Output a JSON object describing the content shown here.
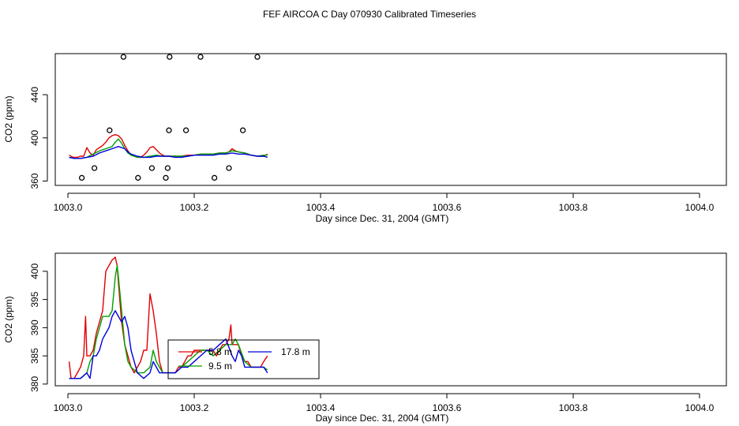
{
  "title": "FEF AIRCOA C  Day 070930  Calibrated Timeseries",
  "colors": {
    "red": "#e00000",
    "green": "#00a000",
    "blue": "#0000e0",
    "axis": "#000000"
  },
  "chart_data": [
    {
      "type": "line",
      "xlabel": "Day since Dec. 31, 2004 (GMT)",
      "ylabel": "CO2 (ppm)",
      "xlim": [
        1003.0,
        1004.0
      ],
      "ylim": [
        356,
        478
      ],
      "xticks": [
        1003.0,
        1003.2,
        1003.4,
        1003.6,
        1003.8,
        1004.0
      ],
      "xtick_labels": [
        "1003.0",
        "1003.2",
        "1003.4",
        "1003.6",
        "1003.8",
        "1004.0"
      ],
      "yticks": [
        360,
        400,
        440
      ],
      "ytick_labels": [
        "360",
        "400",
        "440"
      ],
      "series": [
        {
          "name": "red",
          "color": "#e00000",
          "x": [
            1003.002,
            1003.008,
            1003.015,
            1003.02,
            1003.025,
            1003.03,
            1003.035,
            1003.04,
            1003.045,
            1003.05,
            1003.055,
            1003.06,
            1003.065,
            1003.07,
            1003.075,
            1003.08,
            1003.085,
            1003.09,
            1003.095,
            1003.1,
            1003.105,
            1003.11,
            1003.115,
            1003.12,
            1003.125,
            1003.13,
            1003.135,
            1003.14,
            1003.145,
            1003.15,
            1003.155,
            1003.16,
            1003.17,
            1003.18,
            1003.19,
            1003.2,
            1003.21,
            1003.22,
            1003.23,
            1003.24,
            1003.25,
            1003.255,
            1003.26,
            1003.265,
            1003.27,
            1003.28,
            1003.29,
            1003.3,
            1003.31,
            1003.316
          ],
          "values": [
            384,
            382,
            382,
            383,
            383,
            391,
            386,
            384,
            389,
            391,
            393,
            396,
            400,
            402,
            403,
            402,
            399,
            393,
            388,
            384,
            383,
            382,
            382,
            384,
            387,
            391,
            392,
            389,
            386,
            384,
            383,
            383,
            383,
            383,
            384,
            384,
            385,
            385,
            385,
            386,
            386,
            387,
            390,
            388,
            387,
            386,
            384,
            383,
            383,
            385
          ]
        },
        {
          "name": "green",
          "color": "#00a000",
          "x": [
            1003.002,
            1003.01,
            1003.02,
            1003.03,
            1003.04,
            1003.05,
            1003.06,
            1003.065,
            1003.07,
            1003.075,
            1003.08,
            1003.085,
            1003.09,
            1003.095,
            1003.1,
            1003.11,
            1003.12,
            1003.13,
            1003.14,
            1003.15,
            1003.16,
            1003.17,
            1003.18,
            1003.19,
            1003.2,
            1003.21,
            1003.22,
            1003.23,
            1003.24,
            1003.25,
            1003.26,
            1003.27,
            1003.28,
            1003.29,
            1003.3,
            1003.31,
            1003.316
          ],
          "values": [
            382,
            381,
            381,
            382,
            385,
            388,
            390,
            391,
            392,
            396,
            399,
            395,
            390,
            386,
            384,
            382,
            382,
            383,
            384,
            383,
            383,
            383,
            383,
            383,
            384,
            385,
            385,
            385,
            386,
            386,
            388,
            387,
            386,
            384,
            383,
            384,
            384
          ]
        },
        {
          "name": "blue",
          "color": "#0000e0",
          "x": [
            1003.002,
            1003.01,
            1003.02,
            1003.03,
            1003.04,
            1003.05,
            1003.06,
            1003.07,
            1003.075,
            1003.08,
            1003.085,
            1003.09,
            1003.095,
            1003.1,
            1003.11,
            1003.12,
            1003.13,
            1003.14,
            1003.15,
            1003.16,
            1003.17,
            1003.18,
            1003.19,
            1003.2,
            1003.21,
            1003.22,
            1003.23,
            1003.24,
            1003.25,
            1003.26,
            1003.27,
            1003.28,
            1003.29,
            1003.3,
            1003.31,
            1003.316
          ],
          "values": [
            382,
            381,
            381,
            382,
            383,
            386,
            388,
            390,
            391,
            392,
            391,
            390,
            387,
            385,
            383,
            382,
            382,
            383,
            383,
            383,
            382,
            382,
            383,
            384,
            384,
            384,
            384,
            385,
            385,
            386,
            385,
            385,
            384,
            383,
            383,
            382
          ]
        }
      ],
      "points": {
        "x": [
          1003.022,
          1003.042,
          1003.066,
          1003.088,
          1003.111,
          1003.133,
          1003.155,
          1003.158,
          1003.16,
          1003.161,
          1003.187,
          1003.21,
          1003.232,
          1003.255,
          1003.277,
          1003.3
        ],
        "values": [
          363,
          372,
          407,
          475,
          363,
          372,
          363,
          372,
          407,
          475,
          407,
          475,
          363,
          372,
          407,
          475
        ]
      }
    },
    {
      "type": "line",
      "xlabel": "Day since Dec. 31, 2004 (GMT)",
      "ylabel": "CO2 (ppm)",
      "xlim": [
        1003.0,
        1004.0
      ],
      "ylim": [
        379.7,
        403.2
      ],
      "xticks": [
        1003.0,
        1003.2,
        1003.4,
        1003.6,
        1003.8,
        1004.0
      ],
      "xtick_labels": [
        "1003.0",
        "1003.2",
        "1003.4",
        "1003.6",
        "1003.8",
        "1004.0"
      ],
      "yticks": [
        380,
        385,
        390,
        395,
        400
      ],
      "ytick_labels": [
        "380",
        "385",
        "390",
        "395",
        "400"
      ],
      "legend": {
        "labels": [
          "5.8 m",
          "9.5 m",
          "17.8 m"
        ],
        "colors": [
          "#e00000",
          "#00a000",
          "#0000e0"
        ],
        "position": "center"
      },
      "series": [
        {
          "name": "5.8 m",
          "color": "#e00000",
          "x": [
            1003.002,
            1003.005,
            1003.01,
            1003.015,
            1003.02,
            1003.025,
            1003.028,
            1003.03,
            1003.035,
            1003.04,
            1003.045,
            1003.05,
            1003.055,
            1003.06,
            1003.065,
            1003.07,
            1003.075,
            1003.078,
            1003.08,
            1003.085,
            1003.09,
            1003.095,
            1003.1,
            1003.105,
            1003.11,
            1003.115,
            1003.12,
            1003.125,
            1003.13,
            1003.135,
            1003.14,
            1003.145,
            1003.15,
            1003.155,
            1003.16,
            1003.165,
            1003.17,
            1003.175,
            1003.18,
            1003.185,
            1003.19,
            1003.195,
            1003.2,
            1003.205,
            1003.21,
            1003.215,
            1003.22,
            1003.225,
            1003.23,
            1003.235,
            1003.24,
            1003.245,
            1003.25,
            1003.255,
            1003.258,
            1003.26,
            1003.265,
            1003.27,
            1003.275,
            1003.28,
            1003.285,
            1003.29,
            1003.295,
            1003.3,
            1003.305,
            1003.31,
            1003.316
          ],
          "values": [
            384,
            381,
            381,
            382,
            383,
            385,
            392,
            385,
            385,
            386,
            389,
            391,
            393,
            400,
            401,
            402,
            402.5,
            401,
            398,
            391,
            387,
            385,
            383,
            382,
            383,
            384,
            386,
            386,
            396,
            393,
            389,
            384,
            382,
            382,
            382,
            382,
            382,
            383,
            383,
            384,
            385,
            385,
            386,
            386,
            386,
            386,
            386,
            386,
            386,
            385,
            386,
            387,
            387,
            388,
            390.5,
            387,
            387,
            387,
            385,
            384,
            384,
            383,
            383,
            383,
            383,
            384,
            385
          ]
        },
        {
          "name": "9.5 m",
          "color": "#00a000",
          "x": [
            1003.002,
            1003.01,
            1003.02,
            1003.03,
            1003.035,
            1003.04,
            1003.045,
            1003.05,
            1003.055,
            1003.06,
            1003.065,
            1003.07,
            1003.075,
            1003.078,
            1003.08,
            1003.085,
            1003.09,
            1003.095,
            1003.1,
            1003.11,
            1003.12,
            1003.13,
            1003.135,
            1003.14,
            1003.145,
            1003.15,
            1003.16,
            1003.17,
            1003.18,
            1003.19,
            1003.2,
            1003.21,
            1003.22,
            1003.23,
            1003.24,
            1003.25,
            1003.26,
            1003.265,
            1003.27,
            1003.28,
            1003.29,
            1003.3,
            1003.31,
            1003.316
          ],
          "values": [
            381,
            381,
            381,
            382,
            384,
            385,
            388,
            390,
            392,
            392,
            392,
            393,
            399,
            401,
            399,
            393,
            387,
            384,
            383,
            382,
            382,
            383,
            386,
            384,
            383,
            382,
            382,
            382,
            383,
            384,
            385,
            386,
            386,
            385,
            386,
            387,
            387,
            388,
            387,
            384,
            383,
            383,
            383,
            382.5
          ]
        },
        {
          "name": "17.8 m",
          "color": "#0000e0",
          "x": [
            1003.002,
            1003.01,
            1003.02,
            1003.03,
            1003.035,
            1003.04,
            1003.045,
            1003.05,
            1003.055,
            1003.06,
            1003.065,
            1003.07,
            1003.075,
            1003.08,
            1003.085,
            1003.09,
            1003.095,
            1003.1,
            1003.11,
            1003.12,
            1003.13,
            1003.135,
            1003.14,
            1003.145,
            1003.15,
            1003.16,
            1003.17,
            1003.18,
            1003.19,
            1003.2,
            1003.21,
            1003.22,
            1003.23,
            1003.24,
            1003.25,
            1003.26,
            1003.265,
            1003.27,
            1003.275,
            1003.28,
            1003.29,
            1003.3,
            1003.31,
            1003.316
          ],
          "values": [
            381,
            381,
            381,
            382,
            381,
            385,
            385,
            386,
            388,
            389,
            390,
            392,
            393,
            392,
            391,
            392,
            390,
            386,
            382,
            381,
            382,
            384,
            383,
            382,
            382,
            382,
            382,
            383,
            383,
            384,
            385,
            386,
            386,
            387,
            388,
            385,
            384,
            386,
            385,
            383,
            383,
            383,
            383,
            382
          ]
        }
      ]
    }
  ]
}
